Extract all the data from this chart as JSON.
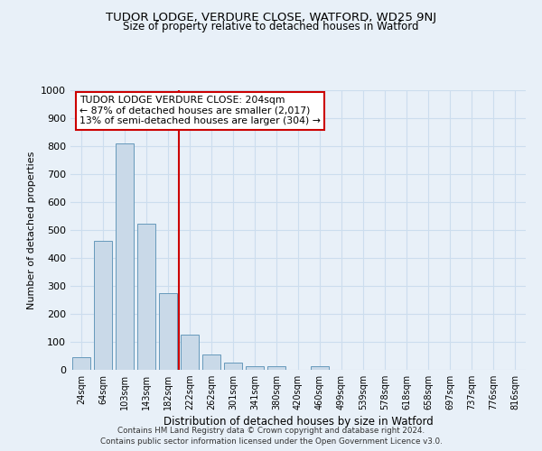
{
  "title1": "TUDOR LODGE, VERDURE CLOSE, WATFORD, WD25 9NJ",
  "title2": "Size of property relative to detached houses in Watford",
  "xlabel": "Distribution of detached houses by size in Watford",
  "ylabel": "Number of detached properties",
  "bar_labels": [
    "24sqm",
    "64sqm",
    "103sqm",
    "143sqm",
    "182sqm",
    "222sqm",
    "262sqm",
    "301sqm",
    "341sqm",
    "380sqm",
    "420sqm",
    "460sqm",
    "499sqm",
    "539sqm",
    "578sqm",
    "618sqm",
    "658sqm",
    "697sqm",
    "737sqm",
    "776sqm",
    "816sqm"
  ],
  "bar_heights": [
    45,
    460,
    810,
    522,
    275,
    125,
    55,
    27,
    12,
    12,
    0,
    12,
    0,
    0,
    0,
    0,
    0,
    0,
    0,
    0,
    0
  ],
  "bar_color": "#c9d9e8",
  "bar_edgecolor": "#6699bb",
  "vline_x_index": 4.5,
  "vline_color": "#cc0000",
  "ylim": [
    0,
    1000
  ],
  "yticks": [
    0,
    100,
    200,
    300,
    400,
    500,
    600,
    700,
    800,
    900,
    1000
  ],
  "grid_color": "#ccddee",
  "background_color": "#e8f0f8",
  "legend_text1": "TUDOR LODGE VERDURE CLOSE: 204sqm",
  "legend_text2": "← 87% of detached houses are smaller (2,017)",
  "legend_text3": "13% of semi-detached houses are larger (304) →",
  "legend_box_facecolor": "#ffffff",
  "legend_box_edgecolor": "#cc0000",
  "footer1": "Contains HM Land Registry data © Crown copyright and database right 2024.",
  "footer2": "Contains public sector information licensed under the Open Government Licence v3.0."
}
